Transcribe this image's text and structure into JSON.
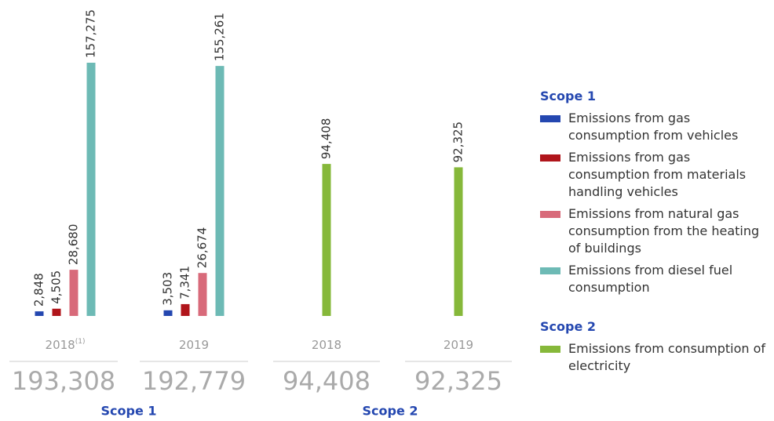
{
  "chart_data": {
    "type": "bar",
    "panels": [
      {
        "name": "Scope 1",
        "categories": [
          "2018",
          "2019"
        ],
        "category_notes": [
          "(1)",
          null
        ],
        "series": [
          {
            "name": "Emissions from gas consumption from vehicles",
            "color": "#2447b0",
            "values": [
              2848,
              3503
            ],
            "value_labels": [
              "2,848",
              "3,503"
            ]
          },
          {
            "name": "Emissions from gas consumption from materials handling vehicles",
            "color": "#b0151b",
            "values": [
              4505,
              7341
            ],
            "value_labels": [
              "4,505",
              "7,341"
            ]
          },
          {
            "name": "Emissions from natural gas consumption from the heating of buildings",
            "color": "#d86a7a",
            "values": [
              28680,
              26674
            ],
            "value_labels": [
              "28,680",
              "26,674"
            ]
          },
          {
            "name": "Emissions from diesel fuel consumption",
            "color": "#6dbab5",
            "values": [
              157275,
              155261
            ],
            "value_labels": [
              "157,275",
              "155,261"
            ]
          }
        ],
        "totals": [
          193308,
          192779
        ],
        "total_labels": [
          "193,308",
          "192,779"
        ]
      },
      {
        "name": "Scope 2",
        "categories": [
          "2018",
          "2019"
        ],
        "category_notes": [
          null,
          null
        ],
        "series": [
          {
            "name": "Emissions from consumption of electricity",
            "color": "#86b83a",
            "values": [
              94408,
              92325
            ],
            "value_labels": [
              "94,408",
              "92,325"
            ]
          }
        ],
        "totals": [
          94408,
          92325
        ],
        "total_labels": [
          "94,408",
          "92,325"
        ]
      }
    ]
  }
}
